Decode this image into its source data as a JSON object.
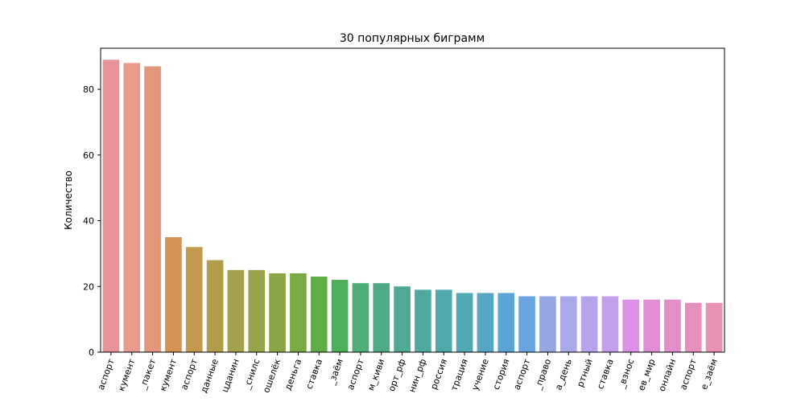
{
  "chart_data": {
    "type": "bar",
    "title": "30 популярных биграмм",
    "xlabel": "",
    "ylabel": "Количество",
    "ylim": [
      0,
      92.5
    ],
    "yticks": [
      0,
      20,
      40,
      60,
      80
    ],
    "grid": false,
    "legend": "none",
    "categories": [
      "аспорт",
      "кумент",
      "_пакет",
      "кумент",
      "аспорт",
      "данные",
      "цданин",
      "_снилс",
      "ошелёк",
      "деньга",
      "ставка",
      "_заём",
      "аспорт",
      "м_киви",
      "орт_рф",
      "нин_рф",
      "россия",
      "трация",
      "учение",
      "стория",
      "аспорт",
      "_право",
      "а_день",
      "ртный",
      "ставка",
      "_взнос",
      "ев_мир",
      "онлайн",
      "аспорт",
      "е_заём"
    ],
    "values": [
      89,
      88,
      87,
      35,
      32,
      28,
      25,
      25,
      24,
      24,
      23,
      22,
      21,
      21,
      20,
      19,
      19,
      18,
      18,
      18,
      17,
      17,
      17,
      17,
      17,
      16,
      16,
      16,
      15,
      15
    ],
    "colors": [
      "#e8929a",
      "#e89a8c",
      "#e39678",
      "#d69354",
      "#c49a4e",
      "#b29e4a",
      "#a3a14a",
      "#97a249",
      "#8aa545",
      "#7aaa45",
      "#5fad45",
      "#4daf5c",
      "#4dae76",
      "#4eab86",
      "#4eaa94",
      "#4fa9a0",
      "#50a8aa",
      "#52a7b5",
      "#54a6c2",
      "#5aa5d6",
      "#6ba4e3",
      "#96a8e3",
      "#a9a8e8",
      "#b6a3eb",
      "#c39eea",
      "#dc90e8",
      "#e38bd7",
      "#e58ccb",
      "#e68fbe",
      "#e891b2"
    ]
  }
}
